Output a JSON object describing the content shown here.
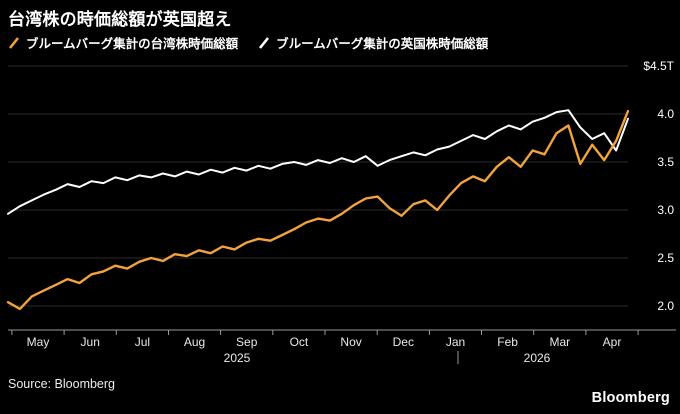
{
  "title": "台湾株の時価総額が英国超え",
  "legend": [
    {
      "label": "ブルームバーグ集計の台湾株時価総額",
      "color": "#F2A33C"
    },
    {
      "label": "ブルームバーグ集計の英国株時価総額",
      "color": "#FFFFFF"
    }
  ],
  "source": "Source: Bloomberg",
  "brand": "Bloomberg",
  "chart_data": {
    "type": "line",
    "title": "台湾株の時価総額が英国超え",
    "month_labels": [
      "May",
      "Jun",
      "Jul",
      "Aug",
      "Sep",
      "Oct",
      "Nov",
      "Dec",
      "Jan",
      "Feb",
      "Mar",
      "Apr"
    ],
    "year_labels": [
      "2025",
      "2026"
    ],
    "y_axis": {
      "min": 2.0,
      "max": 4.5,
      "ticks": [
        2.0,
        2.5,
        3.0,
        3.5,
        4.0,
        4.5
      ],
      "tick_labels": [
        "2.0",
        "2.5",
        "3.0",
        "3.5",
        "4.0",
        "$4.5T"
      ],
      "unit": "trillion USD"
    },
    "grid": true,
    "legend_position": "top-left",
    "series": [
      {
        "id": "taiwan",
        "name": "ブルームバーグ集計の台湾株時価総額",
        "color": "#F2A33C",
        "values": [
          2.04,
          1.97,
          2.1,
          2.16,
          2.22,
          2.28,
          2.24,
          2.33,
          2.36,
          2.42,
          2.39,
          2.46,
          2.5,
          2.47,
          2.54,
          2.52,
          2.58,
          2.55,
          2.62,
          2.59,
          2.66,
          2.7,
          2.68,
          2.74,
          2.8,
          2.87,
          2.91,
          2.89,
          2.96,
          3.05,
          3.12,
          3.14,
          3.02,
          2.94,
          3.06,
          3.1,
          3.0,
          3.15,
          3.28,
          3.35,
          3.3,
          3.45,
          3.55,
          3.45,
          3.62,
          3.58,
          3.8,
          3.88,
          3.48,
          3.68,
          3.52,
          3.72,
          4.03
        ]
      },
      {
        "id": "uk",
        "name": "ブルームバーグ集計の英国株時価総額",
        "color": "#FFFFFF",
        "values": [
          2.96,
          3.04,
          3.1,
          3.16,
          3.21,
          3.27,
          3.24,
          3.3,
          3.28,
          3.34,
          3.31,
          3.36,
          3.34,
          3.38,
          3.35,
          3.4,
          3.37,
          3.42,
          3.39,
          3.44,
          3.41,
          3.46,
          3.43,
          3.48,
          3.5,
          3.47,
          3.52,
          3.49,
          3.54,
          3.5,
          3.56,
          3.46,
          3.52,
          3.56,
          3.6,
          3.57,
          3.63,
          3.66,
          3.72,
          3.78,
          3.74,
          3.82,
          3.88,
          3.84,
          3.92,
          3.96,
          4.02,
          4.04,
          3.86,
          3.74,
          3.8,
          3.62,
          3.95
        ]
      }
    ]
  }
}
